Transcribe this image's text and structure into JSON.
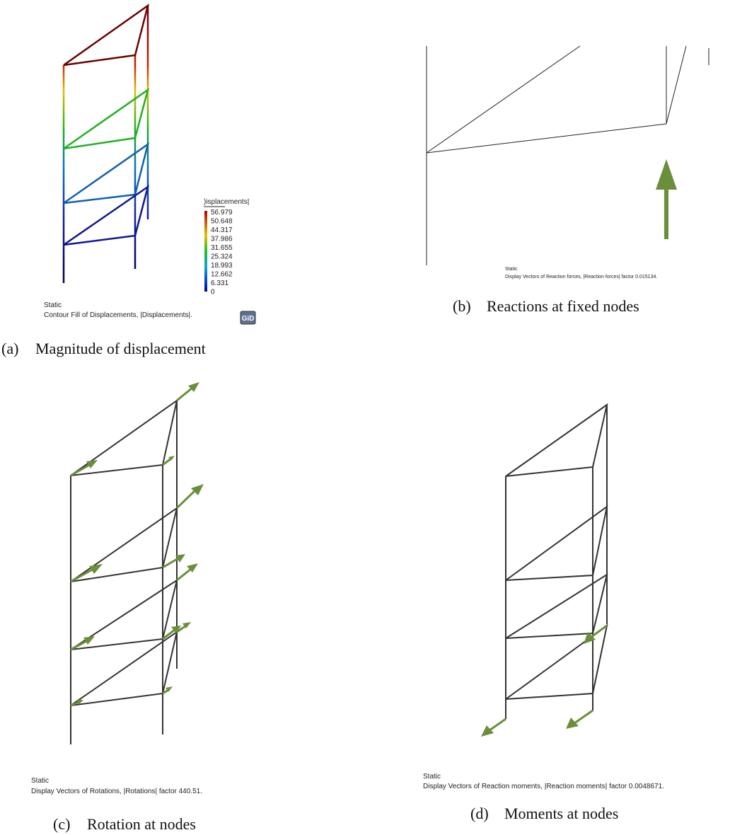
{
  "panels": [
    {
      "label": "(a)",
      "caption": "Magnitude of displacement",
      "case": "Static",
      "description": "Contour Fill of Displacements, |Displacements|.",
      "legend": {
        "title": ")isplacements|",
        "values": [
          "56.979",
          "50.648",
          "44.317",
          "37.986",
          "31.655",
          "25.324",
          "18.993",
          "12.662",
          "6.331",
          "0"
        ]
      },
      "logo": "GiD"
    },
    {
      "label": "(b)",
      "caption": "Reactions at fixed nodes",
      "case": "Static",
      "description": "Display Vectors of Reaction forces, |Reaction forces| factor 0.015134."
    },
    {
      "label": "(c)",
      "caption": "Rotation at nodes",
      "case": "Static",
      "description": "Display Vectors of Rotations, |Rotations| factor 440.51."
    },
    {
      "label": "(d)",
      "caption": "Moments at nodes",
      "case": "Static",
      "description": "Display Vectors of Reaction moments, |Reaction moments| factor 0.0048671."
    }
  ]
}
